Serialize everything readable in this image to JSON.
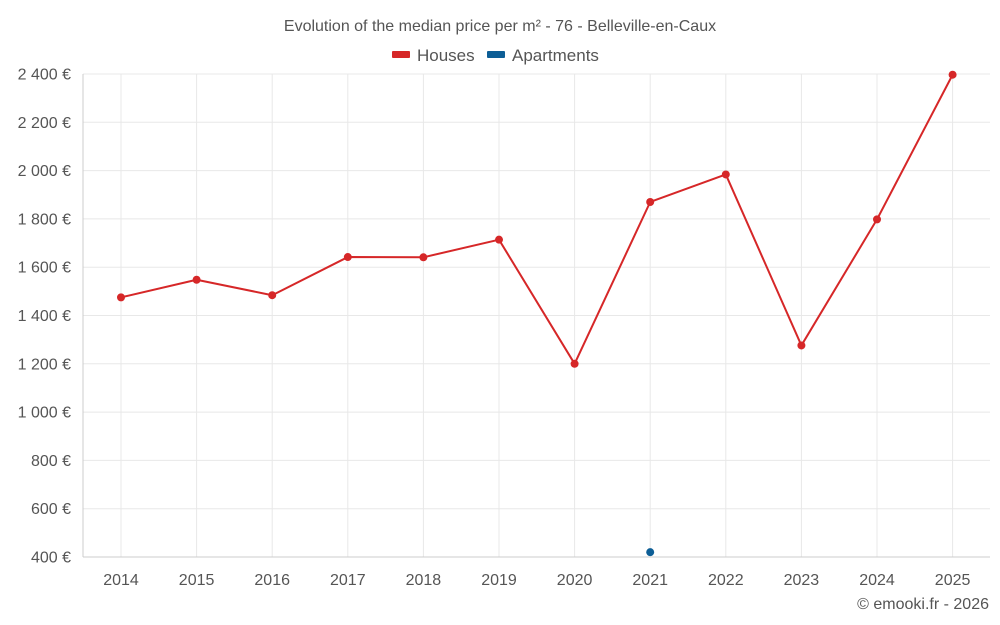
{
  "chart_data": {
    "type": "line",
    "title": "Evolution of the median price per m² - 76 - Belleville-en-Caux",
    "categories": [
      "2014",
      "2015",
      "2016",
      "2017",
      "2018",
      "2019",
      "2020",
      "2021",
      "2022",
      "2023",
      "2024",
      "2025"
    ],
    "series": [
      {
        "name": "Houses",
        "color": "#d62728",
        "values": [
          1475,
          1548,
          1484,
          1642,
          1641,
          1714,
          1200,
          1870,
          1984,
          1276,
          1798,
          2397
        ]
      },
      {
        "name": "Apartments",
        "color": "#0d5e96",
        "values": [
          null,
          null,
          null,
          null,
          null,
          null,
          null,
          420,
          null,
          null,
          null,
          null
        ]
      }
    ],
    "ylim": [
      400,
      2400
    ],
    "yticks": [
      400,
      600,
      800,
      1000,
      1200,
      1400,
      1600,
      1800,
      2000,
      2200,
      2400
    ],
    "ytick_labels": [
      "400 €",
      "600 €",
      "800 €",
      "1 000 €",
      "1 200 €",
      "1 400 €",
      "1 600 €",
      "1 800 €",
      "2 000 €",
      "2 200 €",
      "2 400 €"
    ],
    "xlabel": "",
    "ylabel": "",
    "grid": true,
    "legend_position": "top-center",
    "credit": "© emooki.fr - 2026"
  }
}
